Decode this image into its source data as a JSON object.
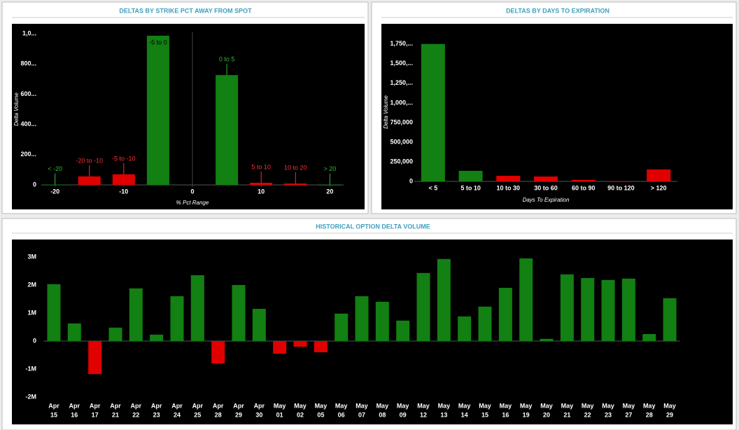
{
  "chart_data": [
    {
      "type": "bar",
      "title": "DELTAS BY STRIKE PCT AWAY FROM SPOT",
      "x": [
        -20,
        -15,
        -10,
        -5,
        5,
        10,
        15,
        20
      ],
      "categories": [
        "< -20",
        "-20 to -10",
        "-5 to -10",
        "-5 to 0",
        "0 to 5",
        "5 to 10",
        "10 to 20",
        "> 20"
      ],
      "values": [
        2,
        56,
        70,
        986,
        726,
        14,
        9,
        1
      ],
      "colors": [
        "#128012",
        "#e00000",
        "#e00000",
        "#128012",
        "#128012",
        "#e00000",
        "#e00000",
        "#128012"
      ],
      "xlim": [
        -22,
        22
      ],
      "xticks": [
        -20,
        -10,
        0,
        10,
        20
      ],
      "ylim": [
        0,
        1000
      ],
      "yticks": [
        0,
        {
          "value": 200,
          "label": "200..."
        },
        {
          "value": 400,
          "label": "400..."
        },
        {
          "value": 600,
          "label": "600..."
        },
        {
          "value": 800,
          "label": "800..."
        },
        {
          "value": 1000,
          "label": "1,0..."
        }
      ],
      "x_label": "% Pct Range",
      "y_label": "Delta Volume"
    },
    {
      "type": "bar",
      "title": "DELTAS BY DAYS TO EXPIRATION",
      "categories": [
        "< 5",
        "5 to 10",
        "10 to 30",
        "30 to 60",
        "60 to 90",
        "90 to 120",
        "> 120"
      ],
      "values": [
        1750000,
        134000,
        71000,
        62000,
        18000,
        2000,
        152000
      ],
      "colors": [
        "#128012",
        "#128012",
        "#e00000",
        "#e00000",
        "#e00000",
        "#e00000",
        "#e00000"
      ],
      "ylim": [
        0,
        1900000
      ],
      "yticks": [
        0,
        {
          "value": 250000,
          "label": "250,000"
        },
        {
          "value": 500000,
          "label": "500,000"
        },
        {
          "value": 750000,
          "label": "750,000"
        },
        {
          "value": 1000000,
          "label": "1,000,..."
        },
        {
          "value": 1250000,
          "label": "1,250,..."
        },
        {
          "value": 1500000,
          "label": "1,500,..."
        },
        {
          "value": 1750000,
          "label": "1,750,..."
        }
      ],
      "x_label": "Days To Expiration",
      "y_label": "Delta Volume"
    },
    {
      "type": "bar",
      "title": "HISTORICAL OPTION DELTA VOLUME",
      "categories": [
        [
          "Apr",
          "15"
        ],
        [
          "Apr",
          "16"
        ],
        [
          "Apr",
          "17"
        ],
        [
          "Apr",
          "21"
        ],
        [
          "Apr",
          "22"
        ],
        [
          "Apr",
          "23"
        ],
        [
          "Apr",
          "24"
        ],
        [
          "Apr",
          "25"
        ],
        [
          "Apr",
          "28"
        ],
        [
          "Apr",
          "29"
        ],
        [
          "Apr",
          "30"
        ],
        [
          "May",
          "01"
        ],
        [
          "May",
          "02"
        ],
        [
          "May",
          "05"
        ],
        [
          "May",
          "06"
        ],
        [
          "May",
          "07"
        ],
        [
          "May",
          "08"
        ],
        [
          "May",
          "09"
        ],
        [
          "May",
          "12"
        ],
        [
          "May",
          "13"
        ],
        [
          "May",
          "14"
        ],
        [
          "May",
          "15"
        ],
        [
          "May",
          "16"
        ],
        [
          "May",
          "19"
        ],
        [
          "May",
          "20"
        ],
        [
          "May",
          "21"
        ],
        [
          "May",
          "22"
        ],
        [
          "May",
          "23"
        ],
        [
          "May",
          "27"
        ],
        [
          "May",
          "28"
        ],
        [
          "May",
          "29"
        ]
      ],
      "values": [
        2030000,
        630000,
        -1180000,
        480000,
        1880000,
        230000,
        1600000,
        2350000,
        -800000,
        2000000,
        1150000,
        -450000,
        -200000,
        -400000,
        980000,
        1600000,
        1400000,
        730000,
        2430000,
        2930000,
        880000,
        1230000,
        1900000,
        2950000,
        80000,
        2380000,
        2250000,
        2180000,
        2230000,
        250000,
        1530000
      ],
      "color": "#128012",
      "negative_color": "#e00000",
      "ylim": [
        -2000000,
        3000000
      ],
      "yticks": [
        {
          "value": -2000000,
          "label": "-2M"
        },
        {
          "value": -1000000,
          "label": "-1M"
        },
        0,
        {
          "value": 1000000,
          "label": "1M"
        },
        {
          "value": 2000000,
          "label": "2M"
        },
        {
          "value": 3000000,
          "label": "3M"
        }
      ]
    }
  ]
}
